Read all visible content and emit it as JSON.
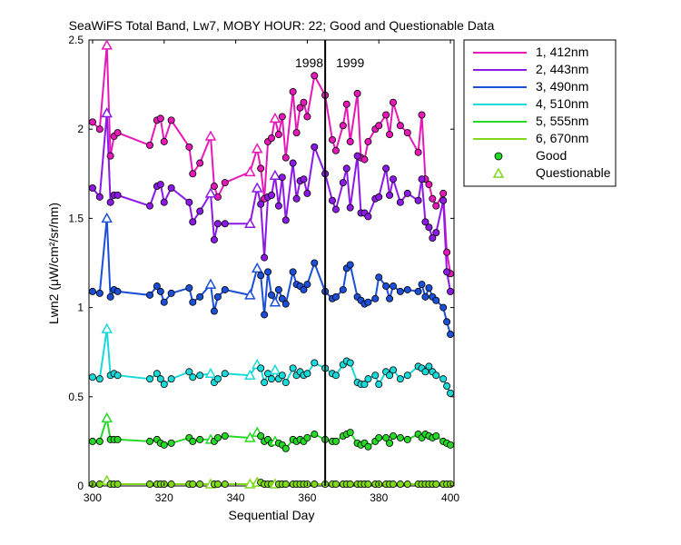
{
  "chart_data": {
    "type": "line",
    "title": "SeaWiFS Total Band, Lw7, MOBY HOUR: 22;  Good and Questionable Data",
    "xlabel": "Sequential Day",
    "ylabel": "Lwn2 (μW/cm²/sr/nm)",
    "xlim": [
      299,
      401
    ],
    "ylim": [
      0,
      2.5
    ],
    "xticks": [
      300,
      320,
      340,
      360,
      380,
      400
    ],
    "yticks": [
      0,
      0.5,
      1,
      1.5,
      2,
      2.5
    ],
    "grid": false,
    "legend_position": "outside-right",
    "year_divider": {
      "x": 365,
      "left_label": "1998",
      "right_label": "1999"
    },
    "x": [
      300,
      302,
      304,
      305,
      306,
      307,
      316,
      318,
      319,
      320,
      322,
      327,
      328,
      330,
      333,
      334,
      335,
      337,
      344,
      346,
      347,
      348,
      349,
      350,
      351,
      352,
      353,
      354,
      356,
      357,
      358,
      359,
      360,
      362,
      365,
      367,
      368,
      370,
      371,
      372,
      374,
      375,
      376,
      377,
      379,
      380,
      382,
      383,
      384,
      386,
      388,
      391,
      392,
      393,
      394,
      395,
      396,
      398,
      399,
      400
    ],
    "series": [
      {
        "name": "1, 412nm",
        "color": "#e619b8",
        "values": [
          2.04,
          2.0,
          2.47,
          1.85,
          1.96,
          1.98,
          1.91,
          2.05,
          2.06,
          1.93,
          2.05,
          1.9,
          1.75,
          1.81,
          1.96,
          1.68,
          1.62,
          1.7,
          1.76,
          1.89,
          1.78,
          1.61,
          1.93,
          1.95,
          2.06,
          1.97,
          2.07,
          1.84,
          2.21,
          1.98,
          2.12,
          2.15,
          2.07,
          2.3,
          2.19,
          1.94,
          1.88,
          2.02,
          2.14,
          1.93,
          2.2,
          1.84,
          1.83,
          1.93,
          2.0,
          2.02,
          2.08,
          1.97,
          2.15,
          2.02,
          1.98,
          1.87,
          2.08,
          1.72,
          1.69,
          1.61,
          1.57,
          1.64,
          1.31,
          1.19
        ]
      },
      {
        "name": "2, 443nm",
        "color": "#8c19e6",
        "values": [
          1.67,
          1.62,
          2.09,
          1.59,
          1.63,
          1.63,
          1.57,
          1.68,
          1.69,
          1.59,
          1.67,
          1.59,
          1.48,
          1.54,
          1.64,
          1.38,
          1.47,
          1.47,
          1.47,
          1.67,
          1.58,
          1.28,
          1.62,
          1.63,
          1.74,
          1.57,
          1.73,
          1.49,
          1.81,
          1.61,
          1.71,
          1.72,
          1.64,
          1.9,
          1.75,
          1.6,
          1.55,
          1.7,
          1.78,
          1.56,
          1.85,
          1.53,
          1.53,
          1.51,
          1.61,
          1.62,
          1.78,
          1.63,
          1.72,
          1.59,
          1.64,
          1.6,
          1.72,
          1.48,
          1.45,
          1.39,
          1.42,
          1.6,
          1.2,
          1.09
        ]
      },
      {
        "name": "3, 490nm",
        "color": "#1a4fd6",
        "values": [
          1.09,
          1.08,
          1.5,
          1.06,
          1.1,
          1.09,
          1.07,
          1.12,
          1.09,
          1.03,
          1.08,
          1.11,
          1.03,
          1.06,
          1.13,
          0.98,
          1.06,
          1.1,
          1.07,
          1.22,
          1.18,
          0.96,
          1.2,
          1.07,
          1.03,
          1.1,
          1.05,
          1.02,
          1.2,
          1.13,
          1.12,
          1.1,
          1.13,
          1.25,
          1.09,
          1.05,
          1.06,
          1.1,
          1.22,
          1.24,
          1.06,
          1.04,
          1.02,
          1.03,
          1.05,
          1.17,
          1.12,
          1.05,
          1.12,
          1.09,
          1.1,
          1.09,
          1.13,
          1.06,
          1.11,
          1.06,
          1.04,
          1.0,
          0.92,
          0.85
        ]
      },
      {
        "name": "4, 510nm",
        "color": "#19d9d9",
        "values": [
          0.61,
          0.6,
          0.88,
          0.62,
          0.63,
          0.62,
          0.6,
          0.63,
          0.6,
          0.57,
          0.6,
          0.64,
          0.61,
          0.62,
          0.63,
          0.58,
          0.6,
          0.63,
          0.62,
          0.68,
          0.66,
          0.58,
          0.63,
          0.6,
          0.65,
          0.6,
          0.62,
          0.58,
          0.66,
          0.62,
          0.64,
          0.62,
          0.63,
          0.69,
          0.66,
          0.63,
          0.62,
          0.68,
          0.7,
          0.69,
          0.58,
          0.57,
          0.57,
          0.6,
          0.62,
          0.57,
          0.64,
          0.62,
          0.65,
          0.6,
          0.62,
          0.67,
          0.66,
          0.64,
          0.67,
          0.64,
          0.62,
          0.6,
          0.56,
          0.52
        ]
      },
      {
        "name": "5, 555nm",
        "color": "#26d926",
        "values": [
          0.25,
          0.25,
          0.38,
          0.26,
          0.26,
          0.26,
          0.25,
          0.26,
          0.24,
          0.23,
          0.24,
          0.27,
          0.25,
          0.26,
          0.26,
          0.25,
          0.27,
          0.28,
          0.27,
          0.3,
          0.28,
          0.25,
          0.26,
          0.24,
          0.25,
          0.24,
          0.23,
          0.21,
          0.26,
          0.25,
          0.26,
          0.25,
          0.27,
          0.29,
          0.26,
          0.25,
          0.25,
          0.28,
          0.29,
          0.3,
          0.24,
          0.23,
          0.24,
          0.22,
          0.25,
          0.27,
          0.27,
          0.24,
          0.28,
          0.27,
          0.26,
          0.29,
          0.27,
          0.29,
          0.28,
          0.27,
          0.28,
          0.25,
          0.24,
          0.23
        ]
      },
      {
        "name": "6, 670nm",
        "color": "#7fd91a",
        "values": [
          0.01,
          0.01,
          0.03,
          0.01,
          0.01,
          0.01,
          0.01,
          0.01,
          0.01,
          0.01,
          0.01,
          0.01,
          0.01,
          0.01,
          0.01,
          0.01,
          0.01,
          0.01,
          0.01,
          0.02,
          0.02,
          0.01,
          0.01,
          0.01,
          0.01,
          0.01,
          0.01,
          0.01,
          0.01,
          0.01,
          0.01,
          0.01,
          0.01,
          0.01,
          0.01,
          0.01,
          0.01,
          0.01,
          0.01,
          0.01,
          0.01,
          0.01,
          0.01,
          0.01,
          0.01,
          0.01,
          0.01,
          0.01,
          0.01,
          0.01,
          0.01,
          0.01,
          0.01,
          0.01,
          0.01,
          0.01,
          0.01,
          0.01,
          0.01,
          0.01
        ]
      }
    ],
    "questionable_x": [
      304,
      333,
      344,
      346,
      351
    ],
    "legend_markers": [
      {
        "label": "Good",
        "symbol": "circle",
        "fill": "#26d926",
        "stroke": "#000000"
      },
      {
        "label": "Questionable",
        "symbol": "triangle",
        "fill": "none",
        "stroke": "#7fd91a"
      }
    ]
  }
}
